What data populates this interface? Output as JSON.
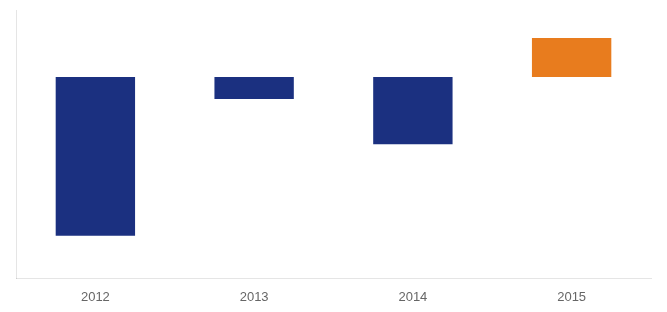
{
  "chart_data": {
    "type": "bar",
    "categories": [
      "2012",
      "2013",
      "2014",
      "2015"
    ],
    "values": [
      -130,
      -18,
      -55,
      32
    ],
    "colors": [
      "#1b3080",
      "#1b3080",
      "#1b3080",
      "#e87c1e"
    ],
    "ylim": [
      -165,
      55
    ],
    "grid": false,
    "tick_labels": "x"
  }
}
